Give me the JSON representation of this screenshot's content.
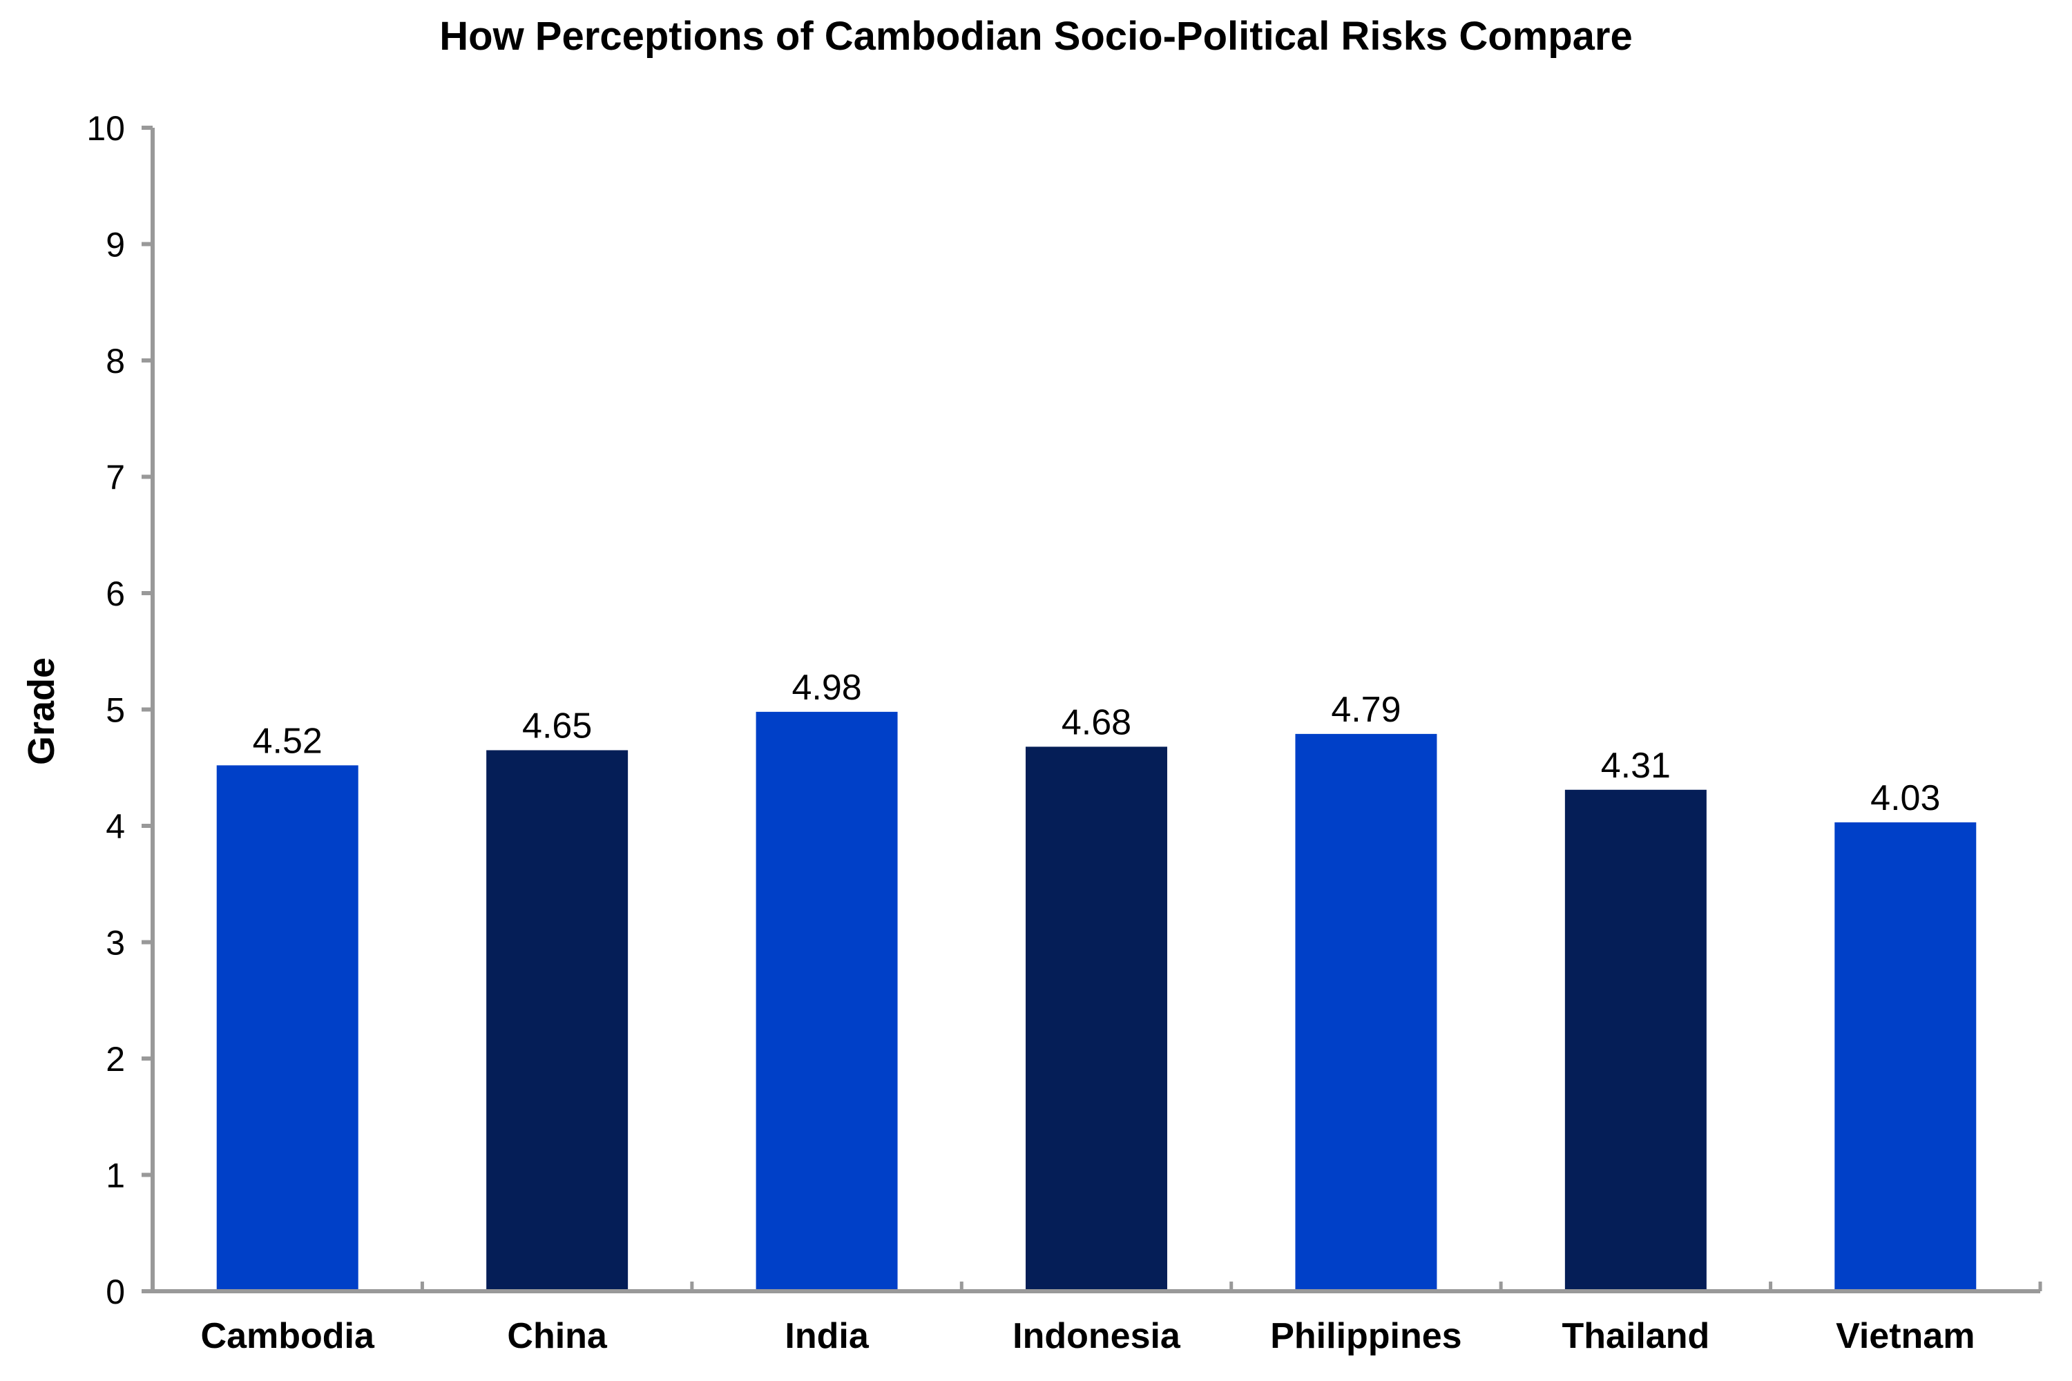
{
  "chart_data": {
    "type": "bar",
    "title": "How Perceptions of Cambodian Socio-Political Risks Compare",
    "xlabel": "",
    "ylabel": "Grade",
    "ylim": [
      0,
      10
    ],
    "yticks": [
      0,
      1,
      2,
      3,
      4,
      5,
      6,
      7,
      8,
      9,
      10
    ],
    "grid": false,
    "legend": "none",
    "categories": [
      "Cambodia",
      "China",
      "India",
      "Indonesia",
      "Philippines",
      "Thailand",
      "Vietnam"
    ],
    "values": [
      4.52,
      4.65,
      4.98,
      4.68,
      4.79,
      4.31,
      4.03
    ],
    "data_labels": [
      "4.52",
      "4.65",
      "4.98",
      "4.68",
      "4.79",
      "4.31",
      "4.03"
    ],
    "bar_colors": [
      "#0040C8",
      "#051E57",
      "#0040C8",
      "#051E57",
      "#0040C8",
      "#051E57",
      "#0040C8"
    ],
    "axis_color": "#999999"
  }
}
